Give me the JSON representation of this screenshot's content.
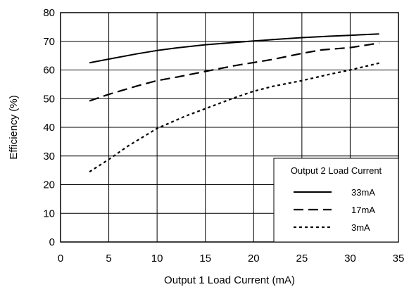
{
  "chart_data": {
    "type": "line",
    "xlabel": "Output 1 Load Current (mA)",
    "ylabel": "Efficiency (%)",
    "xlim": [
      0,
      35
    ],
    "ylim": [
      0,
      80
    ],
    "xticks": [
      0,
      5,
      10,
      15,
      20,
      25,
      30,
      35
    ],
    "yticks": [
      0,
      10,
      20,
      30,
      40,
      50,
      60,
      70,
      80
    ],
    "grid": true,
    "legend": {
      "title": "Output 2 Load Current",
      "placement": "bottom-right"
    },
    "series": [
      {
        "name": "33mA",
        "style": "solid",
        "x": [
          3,
          5,
          8,
          10,
          12,
          15,
          18,
          20,
          22,
          25,
          28,
          30,
          33
        ],
        "y": [
          62.5,
          63.8,
          65.7,
          66.8,
          67.7,
          68.8,
          69.6,
          70.1,
          70.6,
          71.3,
          71.8,
          72.1,
          72.6
        ]
      },
      {
        "name": "17mA",
        "style": "dashed",
        "x": [
          3,
          5,
          8,
          10,
          12,
          15,
          18,
          20,
          22,
          25,
          27,
          30,
          33
        ],
        "y": [
          49.2,
          51.5,
          54.5,
          56.3,
          57.5,
          59.5,
          61.5,
          62.6,
          63.7,
          65.8,
          67.0,
          67.8,
          69.4
        ]
      },
      {
        "name": "3mA",
        "style": "dotted",
        "x": [
          3,
          5,
          7,
          10,
          13,
          15,
          18,
          20,
          22,
          25,
          28,
          30,
          33
        ],
        "y": [
          24.5,
          28.8,
          33.5,
          39.6,
          44.0,
          46.5,
          50.3,
          52.6,
          54.3,
          56.3,
          58.6,
          60.0,
          62.4
        ]
      }
    ]
  }
}
